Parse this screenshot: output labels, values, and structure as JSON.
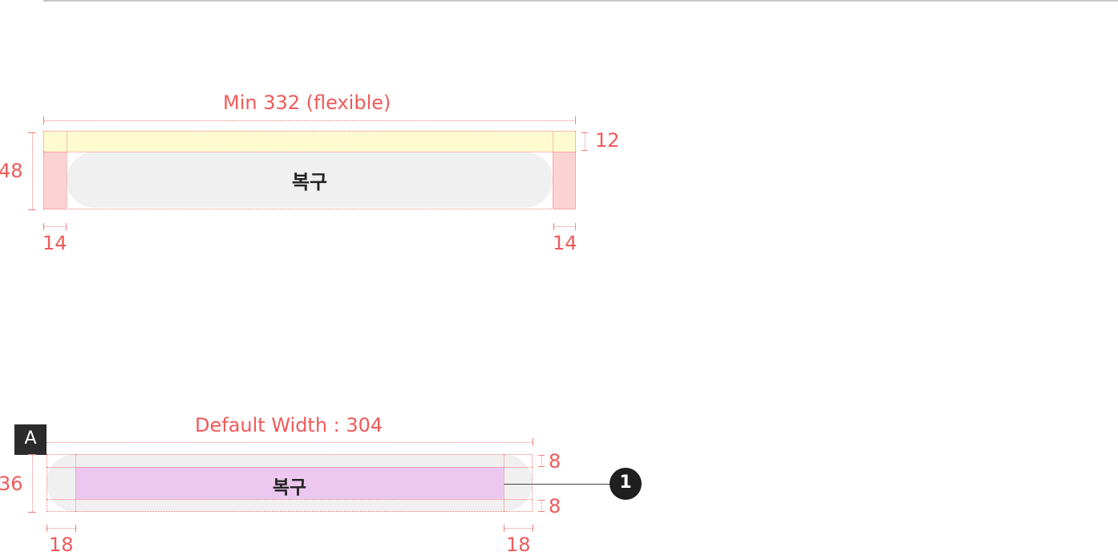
{
  "top_spec": {
    "width_label": "Min 332 (flexible)",
    "height_label": "48",
    "top_padding_label": "12",
    "left_padding_label": "14",
    "right_padding_label": "14",
    "button_label": "복구"
  },
  "bottom_spec": {
    "badge_label": "A",
    "width_label": "Default Width : 304",
    "height_label": "36",
    "top_padding_label": "8",
    "bottom_padding_label": "8",
    "left_padding_label": "18",
    "right_padding_label": "18",
    "button_label": "복구",
    "callout_number": "1"
  },
  "colors": {
    "measure_red": "#ef5a5a",
    "padding_yellow": "#fffbd0",
    "padding_pink": "#fbd3d3",
    "button_gray": "#f0f0f0",
    "text_area_purple": "#ecc7f0",
    "callout_dark": "#1f1f1f"
  }
}
